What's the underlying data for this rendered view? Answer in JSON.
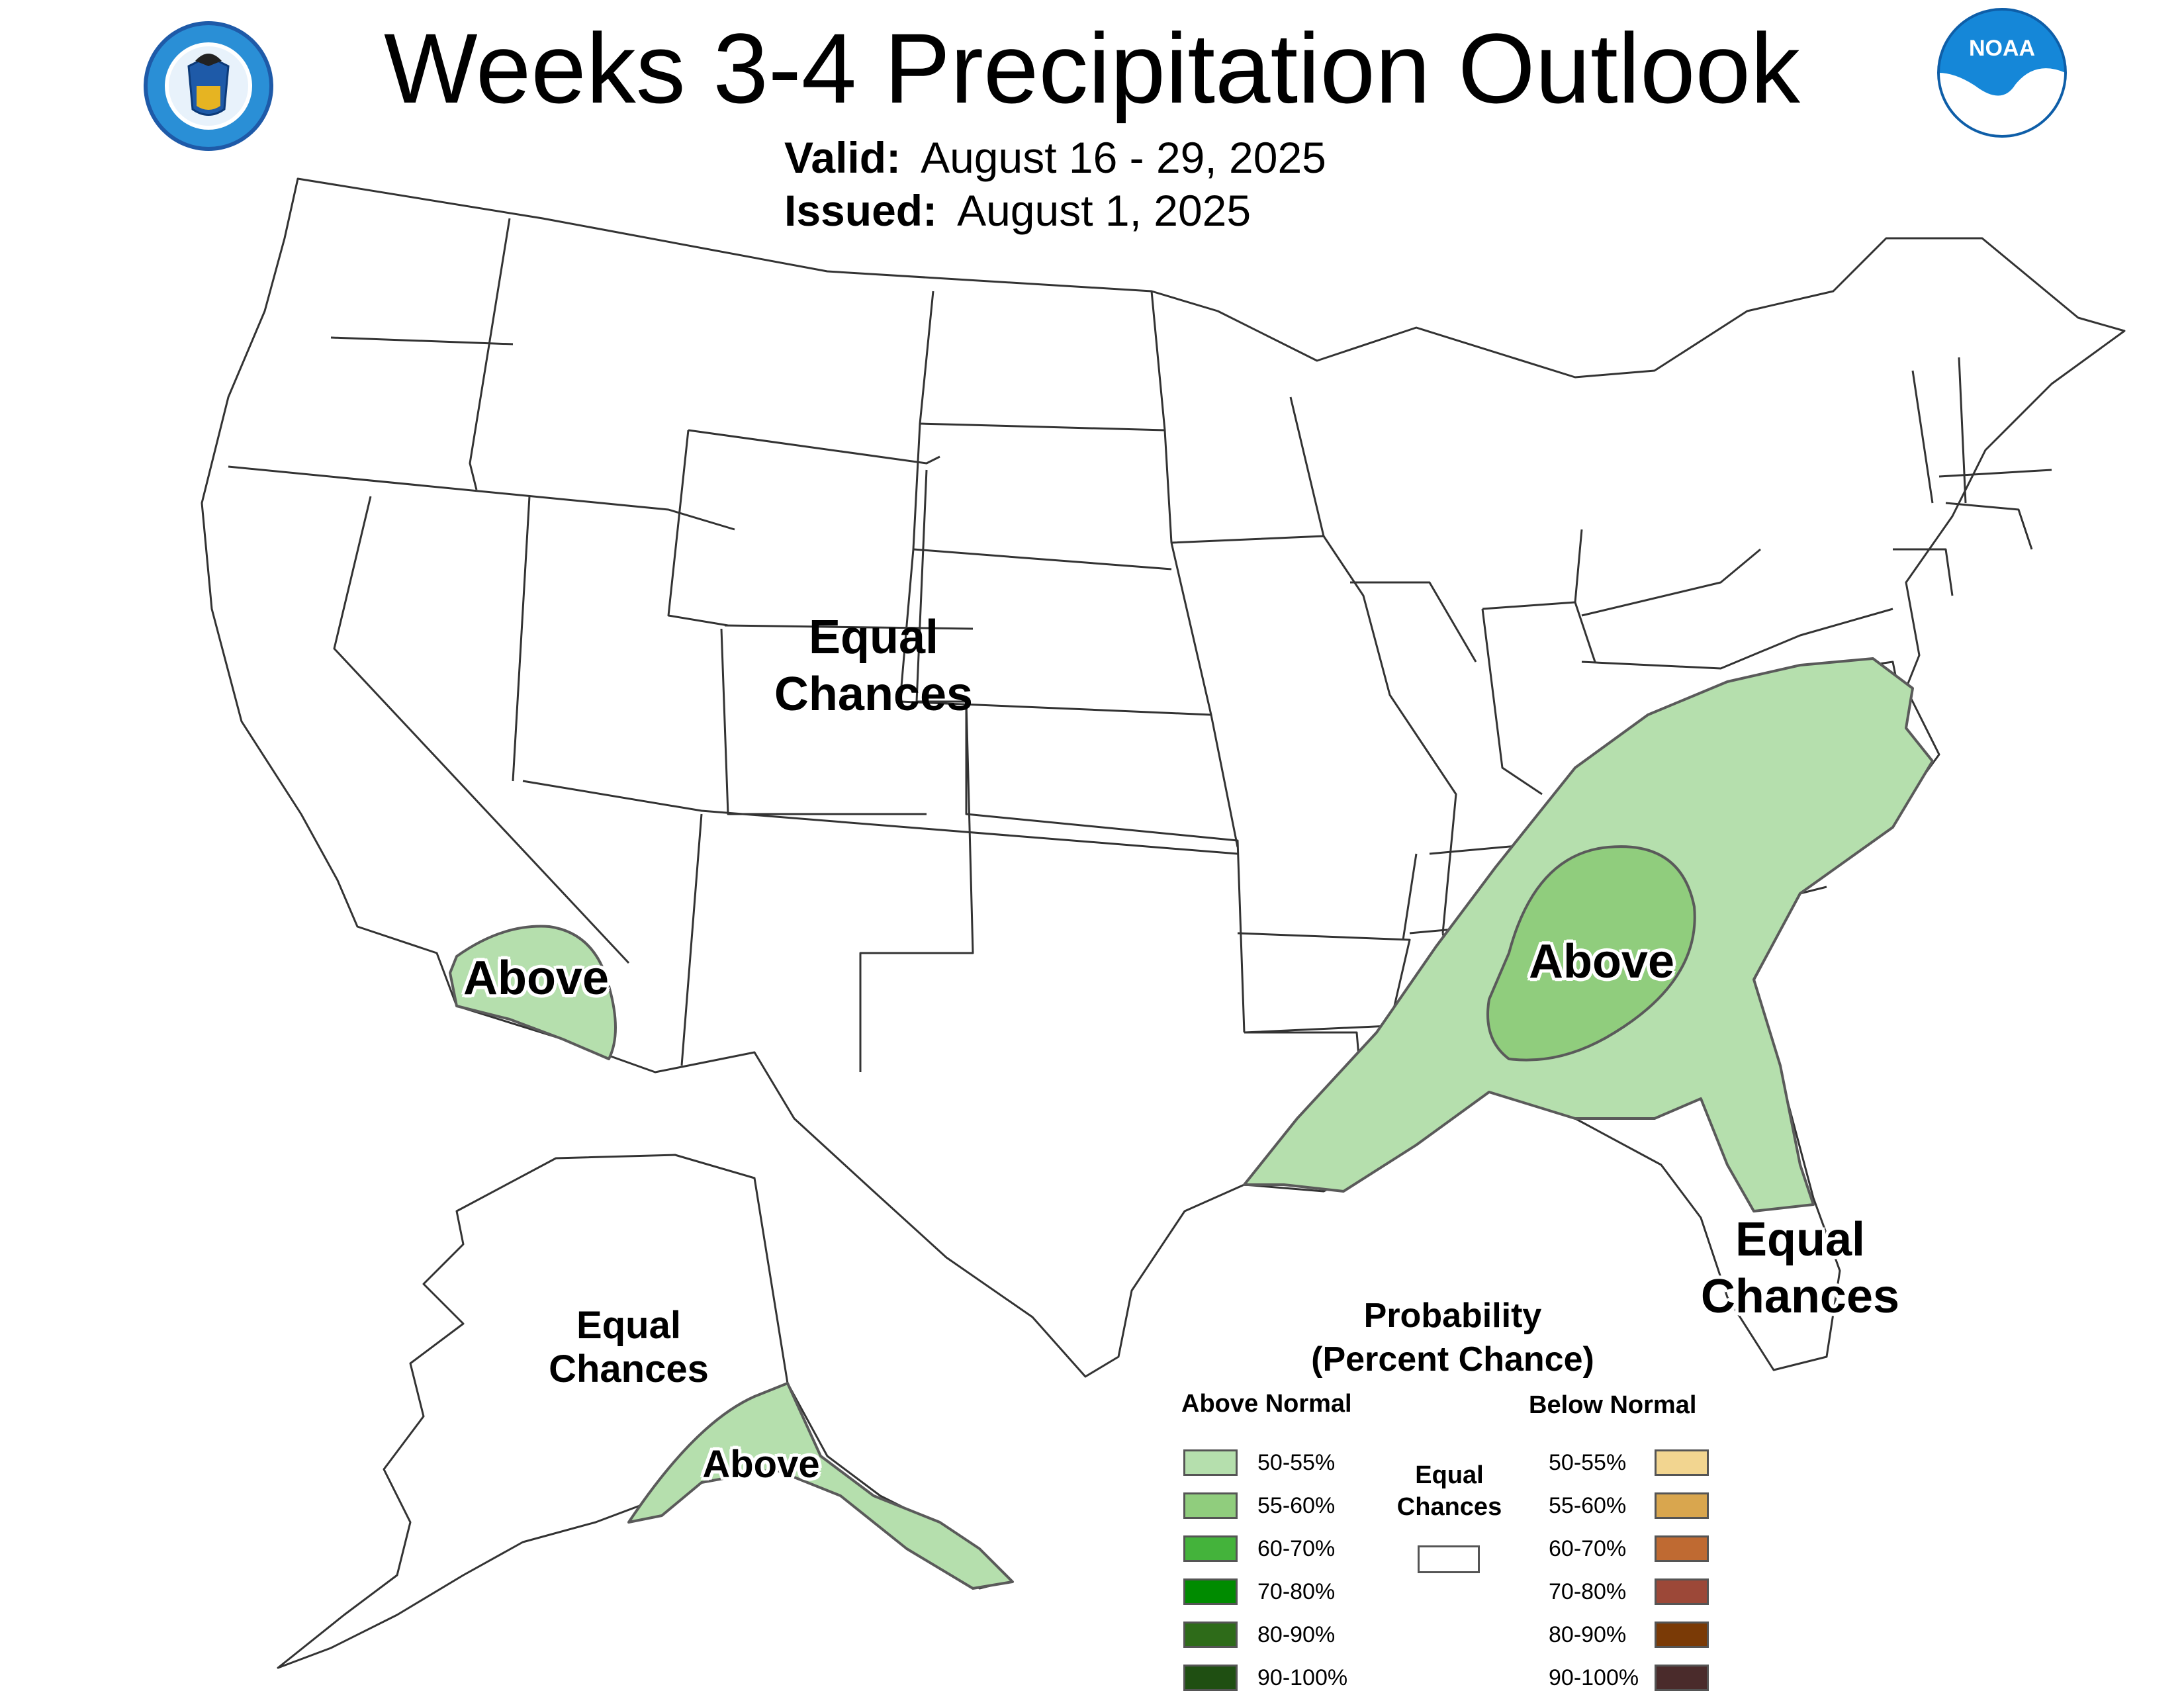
{
  "title": "Weeks 3-4 Precipitation Outlook",
  "valid": {
    "label": "Valid:",
    "value": "August 16 - 29, 2025"
  },
  "issued": {
    "label": "Issued:",
    "value": "August 1, 2025"
  },
  "logos": {
    "left": "department-of-commerce-seal",
    "right": "noaa-logo",
    "noaa_text": "NOAA"
  },
  "map_labels": {
    "west_equal": [
      "Equal",
      "Chances"
    ],
    "southwest_above": "Above",
    "southeast_above": "Above",
    "florida_equal": [
      "Equal",
      "Chances"
    ],
    "alaska_equal": [
      "Equal",
      "Chances"
    ],
    "alaska_above": "Above"
  },
  "legend": {
    "title": [
      "Probability",
      "(Percent Chance)"
    ],
    "above_header": "Above Normal",
    "below_header": "Below Normal",
    "equal_label": [
      "Equal",
      "Chances"
    ],
    "above_items": [
      {
        "label": "50-55%",
        "color": "#b5dfad"
      },
      {
        "label": "55-60%",
        "color": "#90cd7d"
      },
      {
        "label": "60-70%",
        "color": "#44b33b"
      },
      {
        "label": "70-80%",
        "color": "#008b00"
      },
      {
        "label": "80-90%",
        "color": "#2e6b19"
      },
      {
        "label": "90-100%",
        "color": "#1f4f12"
      }
    ],
    "below_items": [
      {
        "label": "50-55%",
        "color": "#f2d590"
      },
      {
        "label": "55-60%",
        "color": "#d9a64e"
      },
      {
        "label": "60-70%",
        "color": "#bf6a32"
      },
      {
        "label": "70-80%",
        "color": "#9c4838"
      },
      {
        "label": "80-90%",
        "color": "#7a3a06"
      },
      {
        "label": "90-100%",
        "color": "#4a2b2b"
      }
    ],
    "equal_color": "#ffffff"
  }
}
